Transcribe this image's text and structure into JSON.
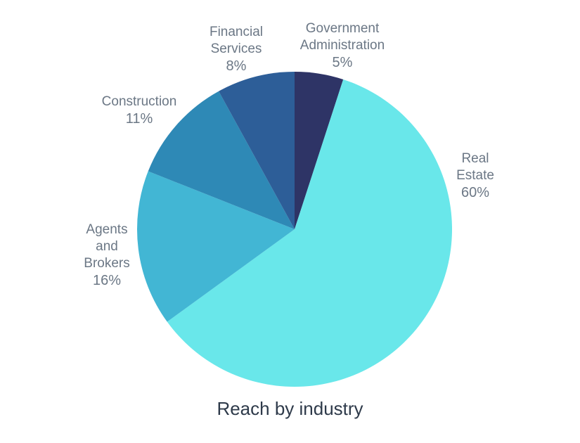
{
  "chart_data": {
    "type": "pie",
    "title": "Reach by industry",
    "categories": [
      "Government Administration",
      "Real Estate",
      "Agents and Brokers",
      "Construction",
      "Financial Services"
    ],
    "values": [
      5,
      60,
      16,
      11,
      8
    ],
    "value_labels": [
      "5%",
      "60%",
      "16%",
      "11%",
      "8%"
    ],
    "colors": [
      "#2e3466",
      "#69e7ea",
      "#42b6d4",
      "#2e89b6",
      "#2d5e98"
    ]
  }
}
